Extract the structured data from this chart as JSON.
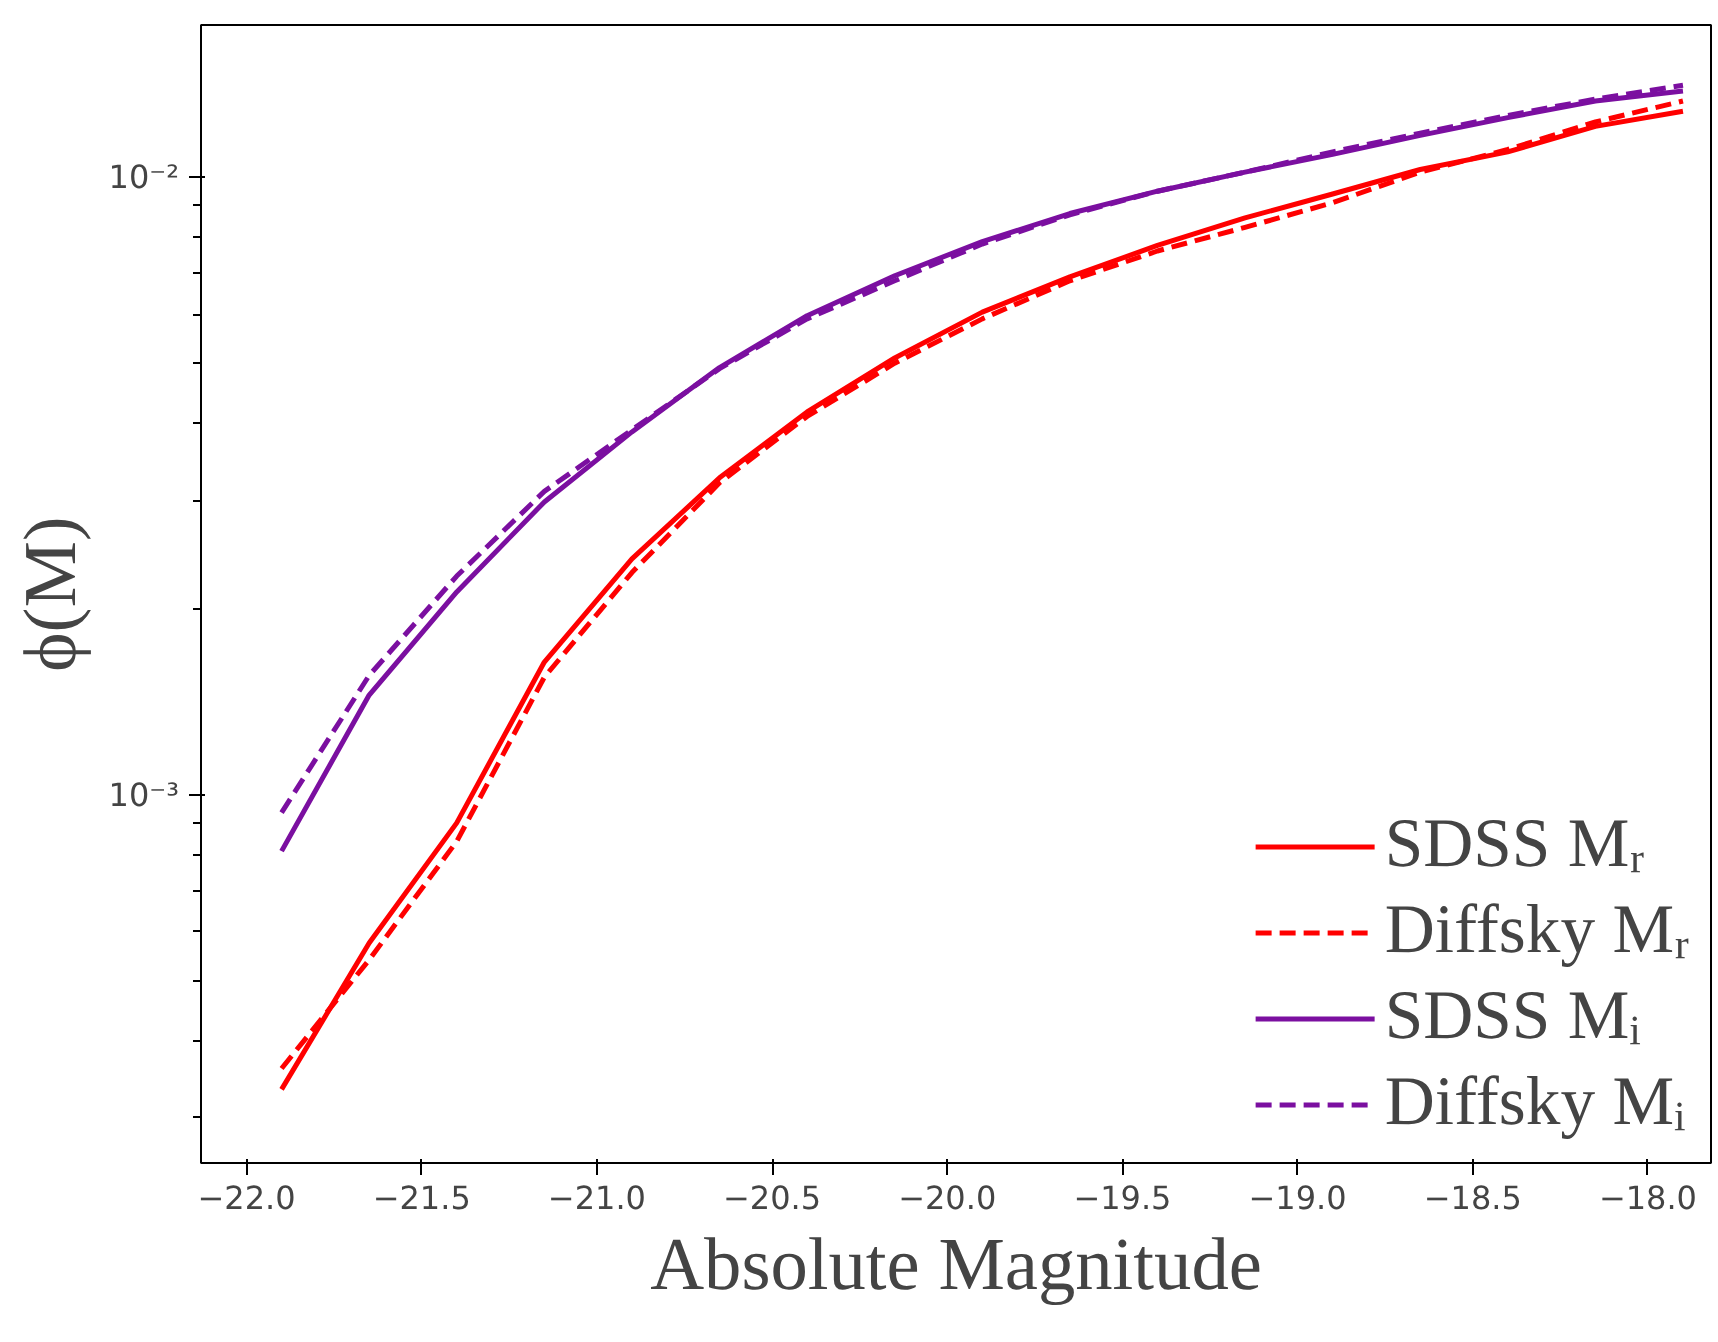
{
  "chart_data": {
    "type": "line",
    "xlabel": "Absolute Magnitude",
    "ylabel": "ϕ(M)",
    "log": "y",
    "grid": false,
    "legend": "bottom right",
    "marker": "none",
    "x": [
      -21.9,
      -21.65,
      -21.4,
      -21.15,
      -20.9,
      -20.65,
      -20.4,
      -20.15,
      -19.9,
      -19.65,
      -19.4,
      -19.15,
      -18.9,
      -18.65,
      -18.4,
      -18.15,
      -17.9
    ],
    "xlim": [
      -22.13,
      -17.82
    ],
    "ylim": [
      0.000253,
      0.01766
    ],
    "xticks": [
      {
        "value": -22.0,
        "label": "−22.0"
      },
      {
        "value": -21.5,
        "label": "−21.5"
      },
      {
        "value": -21.0,
        "label": "−21.0"
      },
      {
        "value": -20.5,
        "label": "−20.5"
      },
      {
        "value": -20.0,
        "label": "−20.0"
      },
      {
        "value": -19.5,
        "label": "−19.5"
      },
      {
        "value": -19.0,
        "label": "−19.0"
      },
      {
        "value": -18.5,
        "label": "−18.5"
      },
      {
        "value": -18.0,
        "label": "−18.0"
      }
    ],
    "yticks": [
      {
        "value": 0.001,
        "label": "10⁻³"
      },
      {
        "value": 0.01,
        "label": "10⁻²"
      }
    ],
    "series": [
      {
        "name": "SDSS Mᵣ",
        "color": "#ff0000",
        "line_style": "solid",
        "values": [
          0.000333,
          0.000575,
          0.0009,
          0.00164,
          0.00241,
          0.00326,
          0.00417,
          0.0051,
          0.00605,
          0.0069,
          0.00776,
          0.0086,
          0.0094,
          0.0103,
          0.011,
          0.0121,
          0.0128
        ]
      },
      {
        "name": "Diffsky Mᵣ",
        "color": "#ff0000",
        "line_style": "dashed",
        "values": [
          0.00036,
          0.00054,
          0.00084,
          0.00155,
          0.00229,
          0.0032,
          0.0041,
          0.005,
          0.0059,
          0.0068,
          0.0076,
          0.0083,
          0.0091,
          0.0102,
          0.0111,
          0.0123,
          0.0133
        ]
      },
      {
        "name": "SDSS Mᵢ",
        "color": "#7b0fa0",
        "line_style": "solid",
        "values": [
          0.00081,
          0.00145,
          0.00213,
          0.00298,
          0.00387,
          0.00492,
          0.00597,
          0.00693,
          0.00787,
          0.00874,
          0.0095,
          0.0102,
          0.0109,
          0.0117,
          0.0125,
          0.0133,
          0.0138
        ]
      },
      {
        "name": "Diffsky Mᵢ",
        "color": "#7b0fa0",
        "line_style": "dashed",
        "values": [
          0.000935,
          0.00156,
          0.00226,
          0.0031,
          0.0039,
          0.0049,
          0.0059,
          0.0068,
          0.0078,
          0.0087,
          0.0095,
          0.0102,
          0.011,
          0.0118,
          0.0126,
          0.0134,
          0.0141
        ]
      }
    ]
  }
}
